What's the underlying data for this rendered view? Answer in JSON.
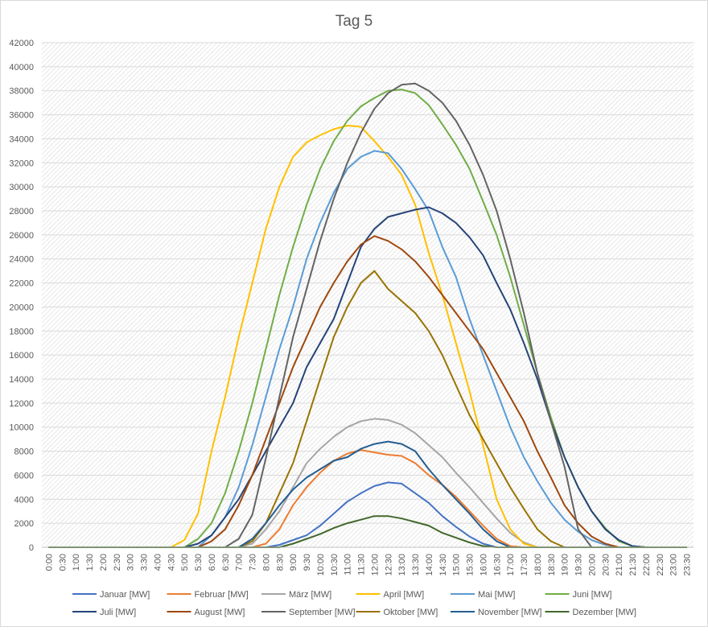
{
  "chart_data": {
    "type": "line",
    "title": "Tag 5",
    "categories": [
      "0:00",
      "0:30",
      "1:00",
      "1:30",
      "2:00",
      "2:30",
      "3:00",
      "3:30",
      "4:00",
      "4:30",
      "5:00",
      "5:30",
      "6:00",
      "6:30",
      "7:00",
      "7:30",
      "8:00",
      "8:30",
      "9:00",
      "9:30",
      "10:00",
      "10:30",
      "11:00",
      "11:30",
      "12:00",
      "12:30",
      "13:00",
      "13:30",
      "14:00",
      "14:30",
      "15:00",
      "15:30",
      "16:00",
      "16:30",
      "17:00",
      "17:30",
      "18:00",
      "18:30",
      "19:00",
      "19:30",
      "20:00",
      "20:30",
      "21:00",
      "21:30",
      "22:00",
      "22:30",
      "23:00",
      "23:30"
    ],
    "ylim": [
      0,
      42000
    ],
    "yticks": [
      0,
      2000,
      4000,
      6000,
      8000,
      10000,
      12000,
      14000,
      16000,
      18000,
      20000,
      22000,
      24000,
      26000,
      28000,
      30000,
      32000,
      34000,
      36000,
      38000,
      40000,
      42000
    ],
    "grid": true,
    "legend": "bottom",
    "series": [
      {
        "name": "Januar [MW]",
        "color": "#4472c4",
        "values": [
          0,
          0,
          0,
          0,
          0,
          0,
          0,
          0,
          0,
          0,
          0,
          0,
          0,
          0,
          0,
          0,
          0,
          200,
          600,
          1000,
          1800,
          2800,
          3800,
          4500,
          5100,
          5400,
          5300,
          4500,
          3700,
          2600,
          1700,
          900,
          300,
          0,
          0,
          0,
          0,
          0,
          0,
          0,
          0,
          0,
          0,
          0,
          0,
          0,
          0,
          0
        ]
      },
      {
        "name": "Februar [MW]",
        "color": "#ed7d31",
        "values": [
          0,
          0,
          0,
          0,
          0,
          0,
          0,
          0,
          0,
          0,
          0,
          0,
          0,
          0,
          0,
          0,
          300,
          1500,
          3500,
          5000,
          6200,
          7200,
          7800,
          8100,
          7900,
          7700,
          7600,
          7000,
          6000,
          5200,
          4200,
          3000,
          1800,
          700,
          100,
          0,
          0,
          0,
          0,
          0,
          0,
          0,
          0,
          0,
          0,
          0,
          0,
          0
        ]
      },
      {
        "name": "März [MW]",
        "color": "#a5a5a5",
        "values": [
          0,
          0,
          0,
          0,
          0,
          0,
          0,
          0,
          0,
          0,
          0,
          0,
          0,
          0,
          0,
          300,
          1500,
          3000,
          5000,
          7000,
          8200,
          9200,
          10000,
          10500,
          10700,
          10600,
          10200,
          9500,
          8500,
          7500,
          6200,
          5000,
          3700,
          2400,
          1200,
          400,
          0,
          0,
          0,
          0,
          0,
          0,
          0,
          0,
          0,
          0,
          0,
          0
        ]
      },
      {
        "name": "April [MW]",
        "color": "#ffc000",
        "values": [
          0,
          0,
          0,
          0,
          0,
          0,
          0,
          0,
          0,
          0,
          600,
          2800,
          8000,
          12500,
          17500,
          22000,
          26500,
          30000,
          32500,
          33700,
          34300,
          34800,
          35100,
          35000,
          33800,
          32500,
          31000,
          28500,
          24500,
          21000,
          17000,
          13000,
          8500,
          4000,
          1500,
          300,
          0,
          0,
          0,
          0,
          0,
          0,
          0,
          0,
          0,
          0,
          0,
          0
        ]
      },
      {
        "name": "Mai [MW]",
        "color": "#5b9bd5",
        "values": [
          0,
          0,
          0,
          0,
          0,
          0,
          0,
          0,
          0,
          0,
          0,
          0,
          1000,
          2500,
          5000,
          8500,
          12500,
          16500,
          20000,
          24000,
          27000,
          29500,
          31500,
          32500,
          33000,
          32800,
          31500,
          29800,
          28000,
          25000,
          22500,
          19000,
          16000,
          13000,
          10000,
          7500,
          5500,
          3700,
          2300,
          1300,
          600,
          200,
          0,
          0,
          0,
          0,
          0,
          0
        ]
      },
      {
        "name": "Juni [MW]",
        "color": "#70ad47",
        "values": [
          0,
          0,
          0,
          0,
          0,
          0,
          0,
          0,
          0,
          0,
          0,
          700,
          2000,
          4500,
          8000,
          12000,
          16500,
          21000,
          25000,
          28500,
          31500,
          33800,
          35500,
          36700,
          37400,
          38000,
          38100,
          37800,
          36800,
          35200,
          33500,
          31500,
          28800,
          26000,
          22500,
          18500,
          14500,
          10800,
          7500,
          5000,
          3000,
          1600,
          500,
          100,
          0,
          0,
          0,
          0
        ]
      },
      {
        "name": "Juli [MW]",
        "color": "#264478",
        "values": [
          0,
          0,
          0,
          0,
          0,
          0,
          0,
          0,
          0,
          0,
          0,
          300,
          1000,
          2500,
          4000,
          6000,
          8000,
          10000,
          12000,
          15000,
          17000,
          19000,
          22000,
          25000,
          26500,
          27500,
          27800,
          28100,
          28300,
          27800,
          27000,
          25800,
          24300,
          22000,
          19800,
          17000,
          14000,
          10500,
          7500,
          5000,
          3000,
          1500,
          600,
          100,
          0,
          0,
          0,
          0
        ]
      },
      {
        "name": "August [MW]",
        "color": "#9e480e",
        "values": [
          0,
          0,
          0,
          0,
          0,
          0,
          0,
          0,
          0,
          0,
          0,
          0,
          500,
          1500,
          3500,
          6000,
          9000,
          12000,
          15000,
          17500,
          20000,
          22000,
          23800,
          25200,
          25900,
          25500,
          24800,
          23800,
          22500,
          21000,
          19500,
          18000,
          16500,
          14500,
          12500,
          10500,
          8000,
          5800,
          3500,
          2000,
          900,
          300,
          0,
          0,
          0,
          0,
          0,
          0
        ]
      },
      {
        "name": "September [MW]",
        "color": "#636363",
        "values": [
          0,
          0,
          0,
          0,
          0,
          0,
          0,
          0,
          0,
          0,
          0,
          0,
          0,
          0,
          700,
          2700,
          7400,
          12500,
          17500,
          21500,
          25500,
          29000,
          32000,
          34500,
          36500,
          37800,
          38500,
          38600,
          38000,
          37000,
          35500,
          33500,
          31000,
          28000,
          24000,
          19500,
          14500,
          10500,
          6700,
          1500,
          0,
          0,
          0,
          0,
          0,
          0,
          0,
          0
        ]
      },
      {
        "name": "Oktober [MW]",
        "color": "#997300",
        "values": [
          0,
          0,
          0,
          0,
          0,
          0,
          0,
          0,
          0,
          0,
          0,
          0,
          0,
          0,
          0,
          500,
          2000,
          4500,
          7000,
          10500,
          14000,
          17500,
          20000,
          22000,
          23000,
          21500,
          20500,
          19500,
          18000,
          16000,
          13500,
          11000,
          9000,
          7000,
          5000,
          3200,
          1500,
          500,
          0,
          0,
          0,
          0,
          0,
          0,
          0,
          0,
          0,
          0
        ]
      },
      {
        "name": "November [MW]",
        "color": "#255e91",
        "values": [
          0,
          0,
          0,
          0,
          0,
          0,
          0,
          0,
          0,
          0,
          0,
          0,
          0,
          0,
          0,
          700,
          2000,
          3500,
          4800,
          5800,
          6500,
          7200,
          7500,
          8200,
          8600,
          8800,
          8600,
          8000,
          6500,
          5200,
          4000,
          2800,
          1500,
          500,
          0,
          0,
          0,
          0,
          0,
          0,
          0,
          0,
          0,
          0,
          0,
          0,
          0,
          0
        ]
      },
      {
        "name": "Dezember [MW]",
        "color": "#43682b",
        "values": [
          0,
          0,
          0,
          0,
          0,
          0,
          0,
          0,
          0,
          0,
          0,
          0,
          0,
          0,
          0,
          0,
          0,
          0,
          300,
          700,
          1100,
          1600,
          2000,
          2300,
          2600,
          2600,
          2400,
          2100,
          1800,
          1200,
          800,
          400,
          100,
          0,
          0,
          0,
          0,
          0,
          0,
          0,
          0,
          0,
          0,
          0,
          0,
          0,
          0,
          0
        ]
      }
    ]
  }
}
